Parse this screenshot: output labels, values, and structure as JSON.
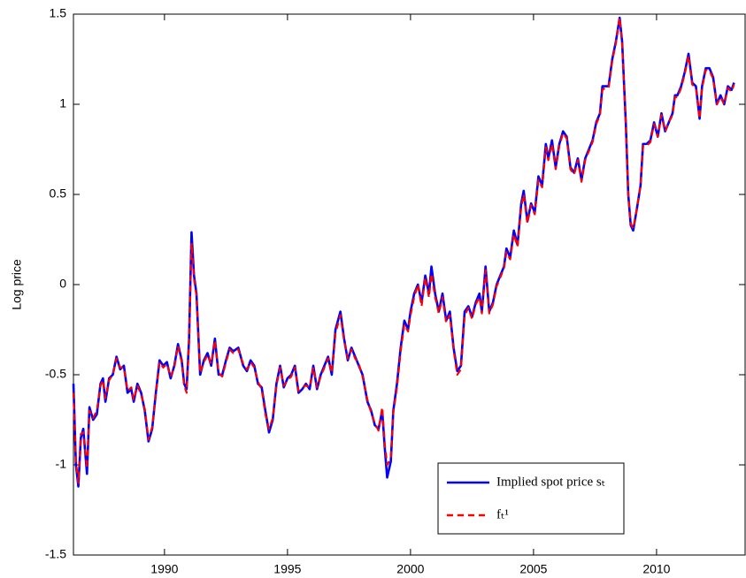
{
  "chart_data": {
    "type": "line",
    "y_label": "Log price",
    "x": [
      1986.3,
      1986.4,
      1986.5,
      1986.6,
      1986.7,
      1986.85,
      1986.95,
      1987.1,
      1987.25,
      1987.4,
      1987.5,
      1987.6,
      1987.75,
      1987.9,
      1988.05,
      1988.2,
      1988.35,
      1988.5,
      1988.65,
      1988.75,
      1988.9,
      1989.05,
      1989.2,
      1989.35,
      1989.5,
      1989.65,
      1989.8,
      1989.95,
      1990.1,
      1990.25,
      1990.4,
      1990.55,
      1990.7,
      1990.8,
      1990.9,
      1991.0,
      1991.1,
      1991.2,
      1991.3,
      1991.45,
      1991.6,
      1991.75,
      1991.9,
      1992.05,
      1992.2,
      1992.35,
      1992.5,
      1992.65,
      1992.8,
      1993.0,
      1993.2,
      1993.35,
      1993.5,
      1993.65,
      1993.8,
      1993.95,
      1994.1,
      1994.25,
      1994.4,
      1994.55,
      1994.7,
      1994.85,
      1995.0,
      1995.15,
      1995.3,
      1995.45,
      1995.6,
      1995.75,
      1995.9,
      1996.05,
      1996.2,
      1996.35,
      1996.5,
      1996.65,
      1996.8,
      1996.95,
      1997.05,
      1997.15,
      1997.3,
      1997.45,
      1997.6,
      1997.75,
      1997.9,
      1998.05,
      1998.25,
      1998.4,
      1998.55,
      1998.7,
      1998.85,
      1998.95,
      1999.05,
      1999.2,
      1999.3,
      1999.45,
      1999.6,
      1999.75,
      1999.9,
      2000.0,
      2000.15,
      2000.3,
      2000.45,
      2000.6,
      2000.75,
      2000.85,
      2001.0,
      2001.15,
      2001.3,
      2001.45,
      2001.6,
      2001.75,
      2001.9,
      2002.05,
      2002.2,
      2002.35,
      2002.5,
      2002.65,
      2002.8,
      2002.9,
      2003.05,
      2003.2,
      2003.35,
      2003.5,
      2003.65,
      2003.8,
      2003.9,
      2004.05,
      2004.2,
      2004.35,
      2004.5,
      2004.6,
      2004.75,
      2004.9,
      2005.05,
      2005.2,
      2005.35,
      2005.5,
      2005.6,
      2005.75,
      2005.9,
      2006.05,
      2006.2,
      2006.35,
      2006.5,
      2006.65,
      2006.8,
      2006.95,
      2007.1,
      2007.25,
      2007.4,
      2007.55,
      2007.7,
      2007.8,
      2007.9,
      2008.05,
      2008.2,
      2008.35,
      2008.5,
      2008.6,
      2008.75,
      2008.85,
      2008.95,
      2009.05,
      2009.2,
      2009.35,
      2009.45,
      2009.6,
      2009.75,
      2009.9,
      2010.05,
      2010.2,
      2010.35,
      2010.5,
      2010.65,
      2010.75,
      2010.85,
      2011.0,
      2011.15,
      2011.3,
      2011.45,
      2011.6,
      2011.75,
      2011.85,
      2012.0,
      2012.15,
      2012.3,
      2012.45,
      2012.6,
      2012.75,
      2012.9,
      2013.05,
      2013.15
    ],
    "series": [
      {
        "name": "Implied spot price sₜ",
        "color": "#0000ff",
        "dash": false,
        "values": [
          -0.55,
          -1.0,
          -1.12,
          -0.85,
          -0.8,
          -1.05,
          -0.68,
          -0.75,
          -0.72,
          -0.55,
          -0.52,
          -0.65,
          -0.52,
          -0.5,
          -0.4,
          -0.47,
          -0.45,
          -0.6,
          -0.58,
          -0.65,
          -0.55,
          -0.6,
          -0.7,
          -0.87,
          -0.8,
          -0.6,
          -0.42,
          -0.45,
          -0.43,
          -0.52,
          -0.45,
          -0.33,
          -0.42,
          -0.55,
          -0.58,
          -0.3,
          0.29,
          0.05,
          -0.05,
          -0.5,
          -0.42,
          -0.38,
          -0.45,
          -0.3,
          -0.5,
          -0.5,
          -0.42,
          -0.35,
          -0.37,
          -0.35,
          -0.45,
          -0.48,
          -0.42,
          -0.45,
          -0.55,
          -0.57,
          -0.7,
          -0.82,
          -0.75,
          -0.55,
          -0.45,
          -0.57,
          -0.52,
          -0.5,
          -0.45,
          -0.6,
          -0.58,
          -0.55,
          -0.58,
          -0.45,
          -0.58,
          -0.5,
          -0.45,
          -0.4,
          -0.5,
          -0.25,
          -0.2,
          -0.15,
          -0.3,
          -0.42,
          -0.35,
          -0.4,
          -0.45,
          -0.5,
          -0.65,
          -0.7,
          -0.78,
          -0.8,
          -0.7,
          -0.9,
          -1.07,
          -0.98,
          -0.7,
          -0.55,
          -0.35,
          -0.2,
          -0.25,
          -0.15,
          -0.05,
          0.0,
          -0.1,
          0.05,
          -0.05,
          0.1,
          -0.05,
          -0.15,
          -0.05,
          -0.2,
          -0.15,
          -0.35,
          -0.48,
          -0.45,
          -0.15,
          -0.12,
          -0.18,
          -0.1,
          -0.05,
          -0.15,
          0.1,
          -0.15,
          -0.1,
          0.0,
          0.05,
          0.1,
          0.2,
          0.15,
          0.3,
          0.22,
          0.45,
          0.52,
          0.35,
          0.45,
          0.4,
          0.6,
          0.55,
          0.78,
          0.7,
          0.8,
          0.65,
          0.78,
          0.85,
          0.82,
          0.65,
          0.62,
          0.7,
          0.58,
          0.7,
          0.75,
          0.8,
          0.9,
          0.95,
          1.1,
          1.1,
          1.1,
          1.25,
          1.35,
          1.48,
          1.35,
          0.9,
          0.5,
          0.33,
          0.3,
          0.42,
          0.55,
          0.78,
          0.78,
          0.8,
          0.9,
          0.82,
          0.95,
          0.85,
          0.9,
          0.95,
          1.05,
          1.05,
          1.1,
          1.18,
          1.28,
          1.12,
          1.1,
          0.92,
          1.1,
          1.2,
          1.2,
          1.15,
          1.0,
          1.05,
          1.0,
          1.1,
          1.08,
          1.12
        ]
      },
      {
        "name": "fₜ¹",
        "color": "#ff0000",
        "dash": true,
        "values": [
          -0.6,
          -0.98,
          -1.1,
          -0.83,
          -0.82,
          -1.02,
          -0.7,
          -0.74,
          -0.7,
          -0.56,
          -0.53,
          -0.63,
          -0.53,
          -0.5,
          -0.41,
          -0.46,
          -0.46,
          -0.59,
          -0.57,
          -0.64,
          -0.56,
          -0.61,
          -0.69,
          -0.86,
          -0.79,
          -0.61,
          -0.43,
          -0.46,
          -0.44,
          -0.51,
          -0.46,
          -0.34,
          -0.43,
          -0.56,
          -0.6,
          -0.32,
          0.23,
          0.03,
          -0.06,
          -0.49,
          -0.43,
          -0.39,
          -0.44,
          -0.31,
          -0.49,
          -0.51,
          -0.43,
          -0.36,
          -0.38,
          -0.36,
          -0.44,
          -0.47,
          -0.43,
          -0.46,
          -0.54,
          -0.58,
          -0.72,
          -0.8,
          -0.74,
          -0.56,
          -0.46,
          -0.56,
          -0.53,
          -0.51,
          -0.46,
          -0.59,
          -0.57,
          -0.56,
          -0.57,
          -0.46,
          -0.57,
          -0.51,
          -0.46,
          -0.41,
          -0.49,
          -0.27,
          -0.22,
          -0.17,
          -0.31,
          -0.41,
          -0.36,
          -0.41,
          -0.44,
          -0.51,
          -0.64,
          -0.71,
          -0.77,
          -0.81,
          -0.68,
          -0.88,
          -1.0,
          -0.96,
          -0.71,
          -0.57,
          -0.37,
          -0.22,
          -0.26,
          -0.17,
          -0.07,
          0.0,
          -0.12,
          0.04,
          -0.07,
          0.06,
          -0.07,
          -0.16,
          -0.07,
          -0.21,
          -0.17,
          -0.36,
          -0.5,
          -0.47,
          -0.17,
          -0.13,
          -0.19,
          -0.11,
          -0.07,
          -0.16,
          0.08,
          -0.16,
          -0.11,
          -0.01,
          0.04,
          0.09,
          0.18,
          0.14,
          0.28,
          0.21,
          0.43,
          0.5,
          0.34,
          0.44,
          0.39,
          0.58,
          0.54,
          0.76,
          0.69,
          0.78,
          0.64,
          0.77,
          0.84,
          0.81,
          0.64,
          0.61,
          0.69,
          0.57,
          0.69,
          0.74,
          0.79,
          0.89,
          0.94,
          1.08,
          1.09,
          1.09,
          1.24,
          1.34,
          1.48,
          1.34,
          0.89,
          0.5,
          0.34,
          0.31,
          0.42,
          0.55,
          0.77,
          0.77,
          0.79,
          0.89,
          0.82,
          0.94,
          0.85,
          0.9,
          0.94,
          1.04,
          1.04,
          1.09,
          1.17,
          1.27,
          1.11,
          1.09,
          0.92,
          1.09,
          1.19,
          1.19,
          1.14,
          1.0,
          1.04,
          1.0,
          1.09,
          1.07,
          1.11
        ]
      }
    ],
    "xlim": [
      1986.3,
      2013.6
    ],
    "xticks": [
      1990,
      1995,
      2000,
      2005,
      2010
    ],
    "ylim": [
      -1.5,
      1.5
    ],
    "yticks": [
      -1.5,
      -1,
      -0.5,
      0,
      0.5,
      1,
      1.5
    ],
    "grid": false,
    "legend": "lower right"
  }
}
